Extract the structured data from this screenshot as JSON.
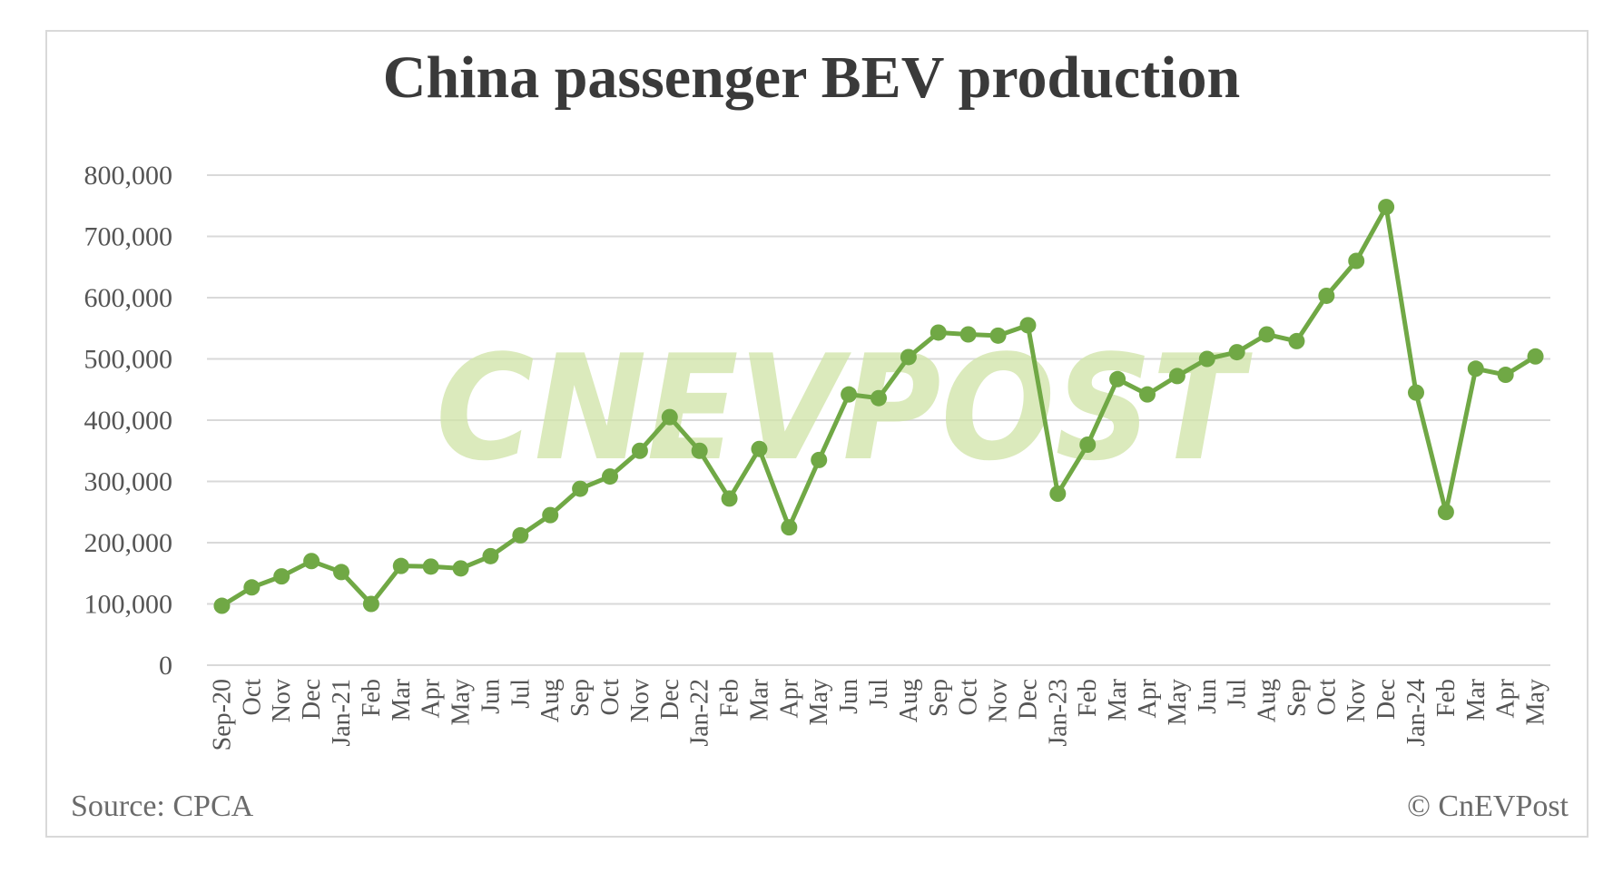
{
  "chart_data": {
    "type": "line",
    "title": "China passenger BEV production",
    "xlabel": "",
    "ylabel": "",
    "ylim": [
      0,
      800000
    ],
    "yticks": [
      "0",
      "100,000",
      "200,000",
      "300,000",
      "400,000",
      "500,000",
      "600,000",
      "700,000",
      "800,000"
    ],
    "categories": [
      "Sep-20",
      "Oct",
      "Nov",
      "Dec",
      "Jan-21",
      "Feb",
      "Mar",
      "Apr",
      "May",
      "Jun",
      "Jul",
      "Aug",
      "Sep",
      "Oct",
      "Nov",
      "Dec",
      "Jan-22",
      "Feb",
      "Mar",
      "Apr",
      "May",
      "Jun",
      "Jul",
      "Aug",
      "Sep",
      "Oct",
      "Nov",
      "Dec",
      "Jan-23",
      "Feb",
      "Mar",
      "Apr",
      "May",
      "Jun",
      "Jul",
      "Aug",
      "Sep",
      "Oct",
      "Nov",
      "Dec",
      "Jan-24",
      "Feb",
      "Mar",
      "Apr",
      "May"
    ],
    "series": [
      {
        "color": "#70a845",
        "values": [
          97000,
          127000,
          145000,
          170000,
          152000,
          100000,
          162000,
          161000,
          158000,
          178000,
          212000,
          245000,
          288000,
          308000,
          350000,
          405000,
          350000,
          272000,
          353000,
          225000,
          335000,
          442000,
          436000,
          503000,
          543000,
          540000,
          538000,
          555000,
          280000,
          360000,
          467000,
          442000,
          472000,
          500000,
          511000,
          540000,
          529000,
          603000,
          660000,
          748000,
          445000,
          250000,
          484000,
          474000,
          504000
        ]
      }
    ],
    "grid": true,
    "legend": "none"
  },
  "watermark": "CnEVPost",
  "footer": {
    "source": "Source: CPCA",
    "copyright": "© CnEVPost"
  }
}
